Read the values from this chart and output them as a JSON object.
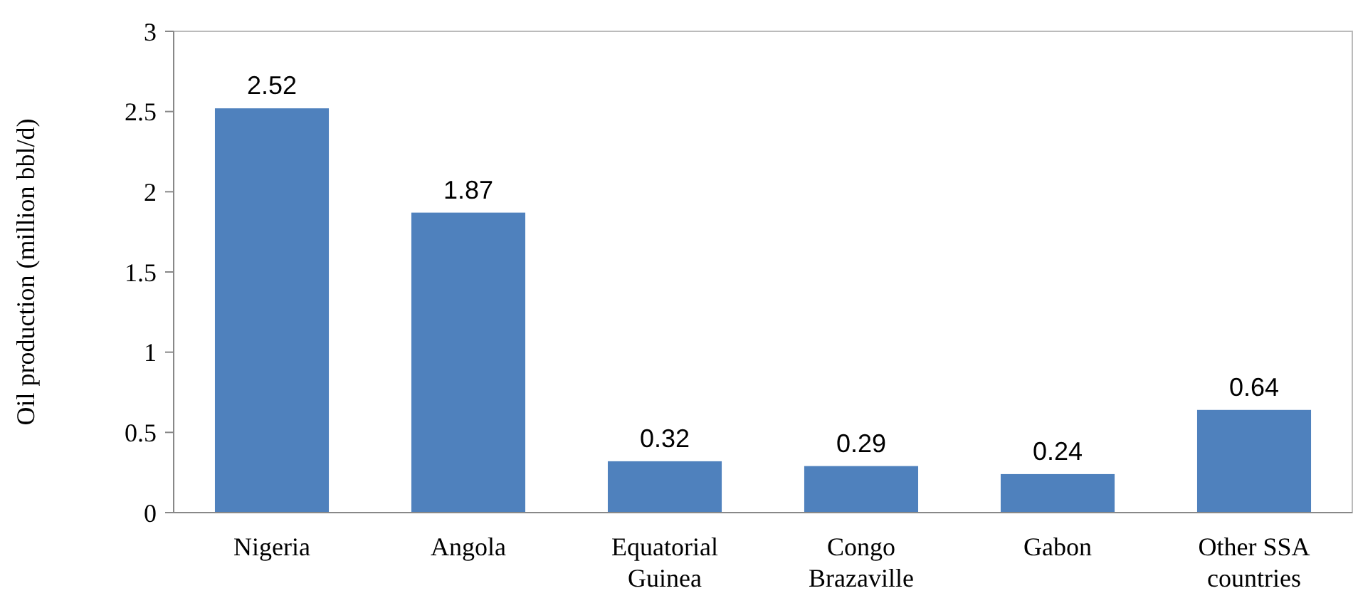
{
  "chart_data": {
    "type": "bar",
    "ylabel": "Oil production (million bbl/d)",
    "categories": [
      "Nigeria",
      "Angola",
      "Equatorial Guinea",
      "Congo Brazaville",
      "Gabon",
      "Other SSA countries"
    ],
    "values": [
      2.52,
      1.87,
      0.32,
      0.29,
      0.24,
      0.64
    ],
    "color": "#4f81bd",
    "ylim": [
      0,
      3
    ],
    "yticks": [
      0,
      0.5,
      1,
      1.5,
      2,
      2.5,
      3
    ],
    "grid": false,
    "data_labels": true
  }
}
